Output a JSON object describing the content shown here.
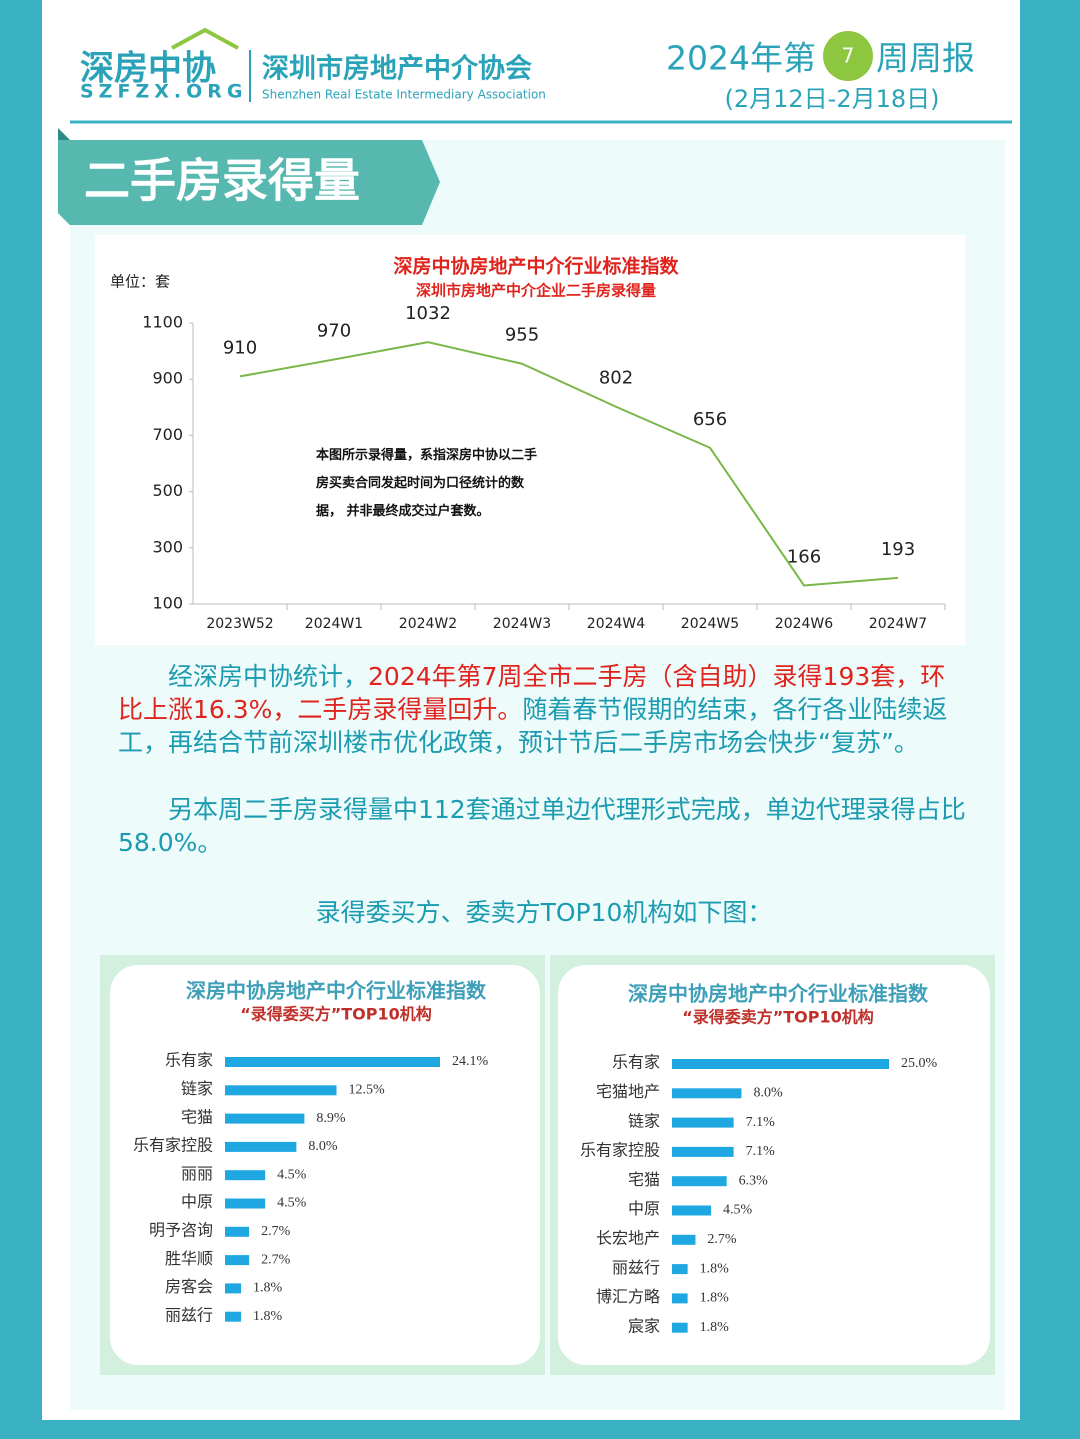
{
  "header": {
    "logo": "深房中协",
    "logo_url": "SZFZX.ORG",
    "org_name": "深圳市房地产中介协会",
    "org_name_en": "Shenzhen Real Estate Intermediary Association",
    "report_prefix": "2024年第",
    "week": "7",
    "report_suffix": "周周报",
    "date_range": "(2月12日-2月18日)"
  },
  "section_title": "二手房录得量",
  "chart_data": [
    {
      "type": "line",
      "title": "深房中协房地产中介行业标准指数",
      "subtitle": "深圳市房地产中介企业二手房录得量",
      "unit_label": "单位：套",
      "annotation": "本图所示录得量，系指深房中协以二手房买卖合同发起时间为口径统计的数据， 并非最终成交过户套数。",
      "categories": [
        "2023W52",
        "2024W1",
        "2024W2",
        "2024W3",
        "2024W4",
        "2024W5",
        "2024W6",
        "2024W7"
      ],
      "values": [
        910,
        970,
        1032,
        955,
        802,
        656,
        166,
        193
      ],
      "color": "#7ab648",
      "ylim": [
        100,
        1100
      ],
      "yticks": [
        100,
        300,
        500,
        700,
        900,
        1100
      ],
      "grid": false
    },
    {
      "type": "bar",
      "orientation": "horizontal",
      "title": "深房中协房地产中介行业标准指数",
      "subtitle": "“录得委买方”TOP10机构",
      "categories": [
        "乐有家",
        "链家",
        "宅猫",
        "乐有家控股",
        "丽丽",
        "中原",
        "明予咨询",
        "胜华顺",
        "房客会",
        "丽兹行"
      ],
      "values": [
        24.1,
        12.5,
        8.9,
        8,
        4.5,
        4.5,
        2.7,
        2.7,
        1.8,
        1.8
      ],
      "value_labels": [
        "24.1%",
        "12.5%",
        "8.9%",
        "8.0%",
        "4.5%",
        "4.5%",
        "2.7%",
        "2.7%",
        "1.8%",
        "1.8%"
      ],
      "color": "#1ea7e1"
    },
    {
      "type": "bar",
      "orientation": "horizontal",
      "title": "深房中协房地产中介行业标准指数",
      "subtitle": "“录得委卖方”TOP10机构",
      "categories": [
        "乐有家",
        "宅猫地产",
        "链家",
        "乐有家控股",
        "宅猫",
        "中原",
        "长宏地产",
        "丽兹行",
        "博汇方略",
        "宸家"
      ],
      "values": [
        25,
        8,
        7.1,
        7.1,
        6.3,
        4.5,
        2.7,
        1.8,
        1.8,
        1.8
      ],
      "value_labels": [
        "25.0%",
        "8.0%",
        "7.1%",
        "7.1%",
        "6.3%",
        "4.5%",
        "2.7%",
        "1.8%",
        "1.8%",
        "1.8%"
      ],
      "color": "#1ea7e1"
    }
  ],
  "paragraphs": [
    {
      "lead": "经深房中协统计，",
      "highlight": "2024年第7周全市二手房（含自助）录得193套，环比上涨16.3%，二手房录得量回升。",
      "rest": "随着春节假期的结束，各行各业陆续返工，再结合节前深圳楼市优化政策，预计节后二手房市场会快步“复苏”。"
    },
    {
      "lead": "另本周二手房录得量中112套通过单边代理形式完成，单边代理录得占比58.0%。"
    }
  ],
  "caption": "录得委买方、委卖方TOP10机构如下图："
}
